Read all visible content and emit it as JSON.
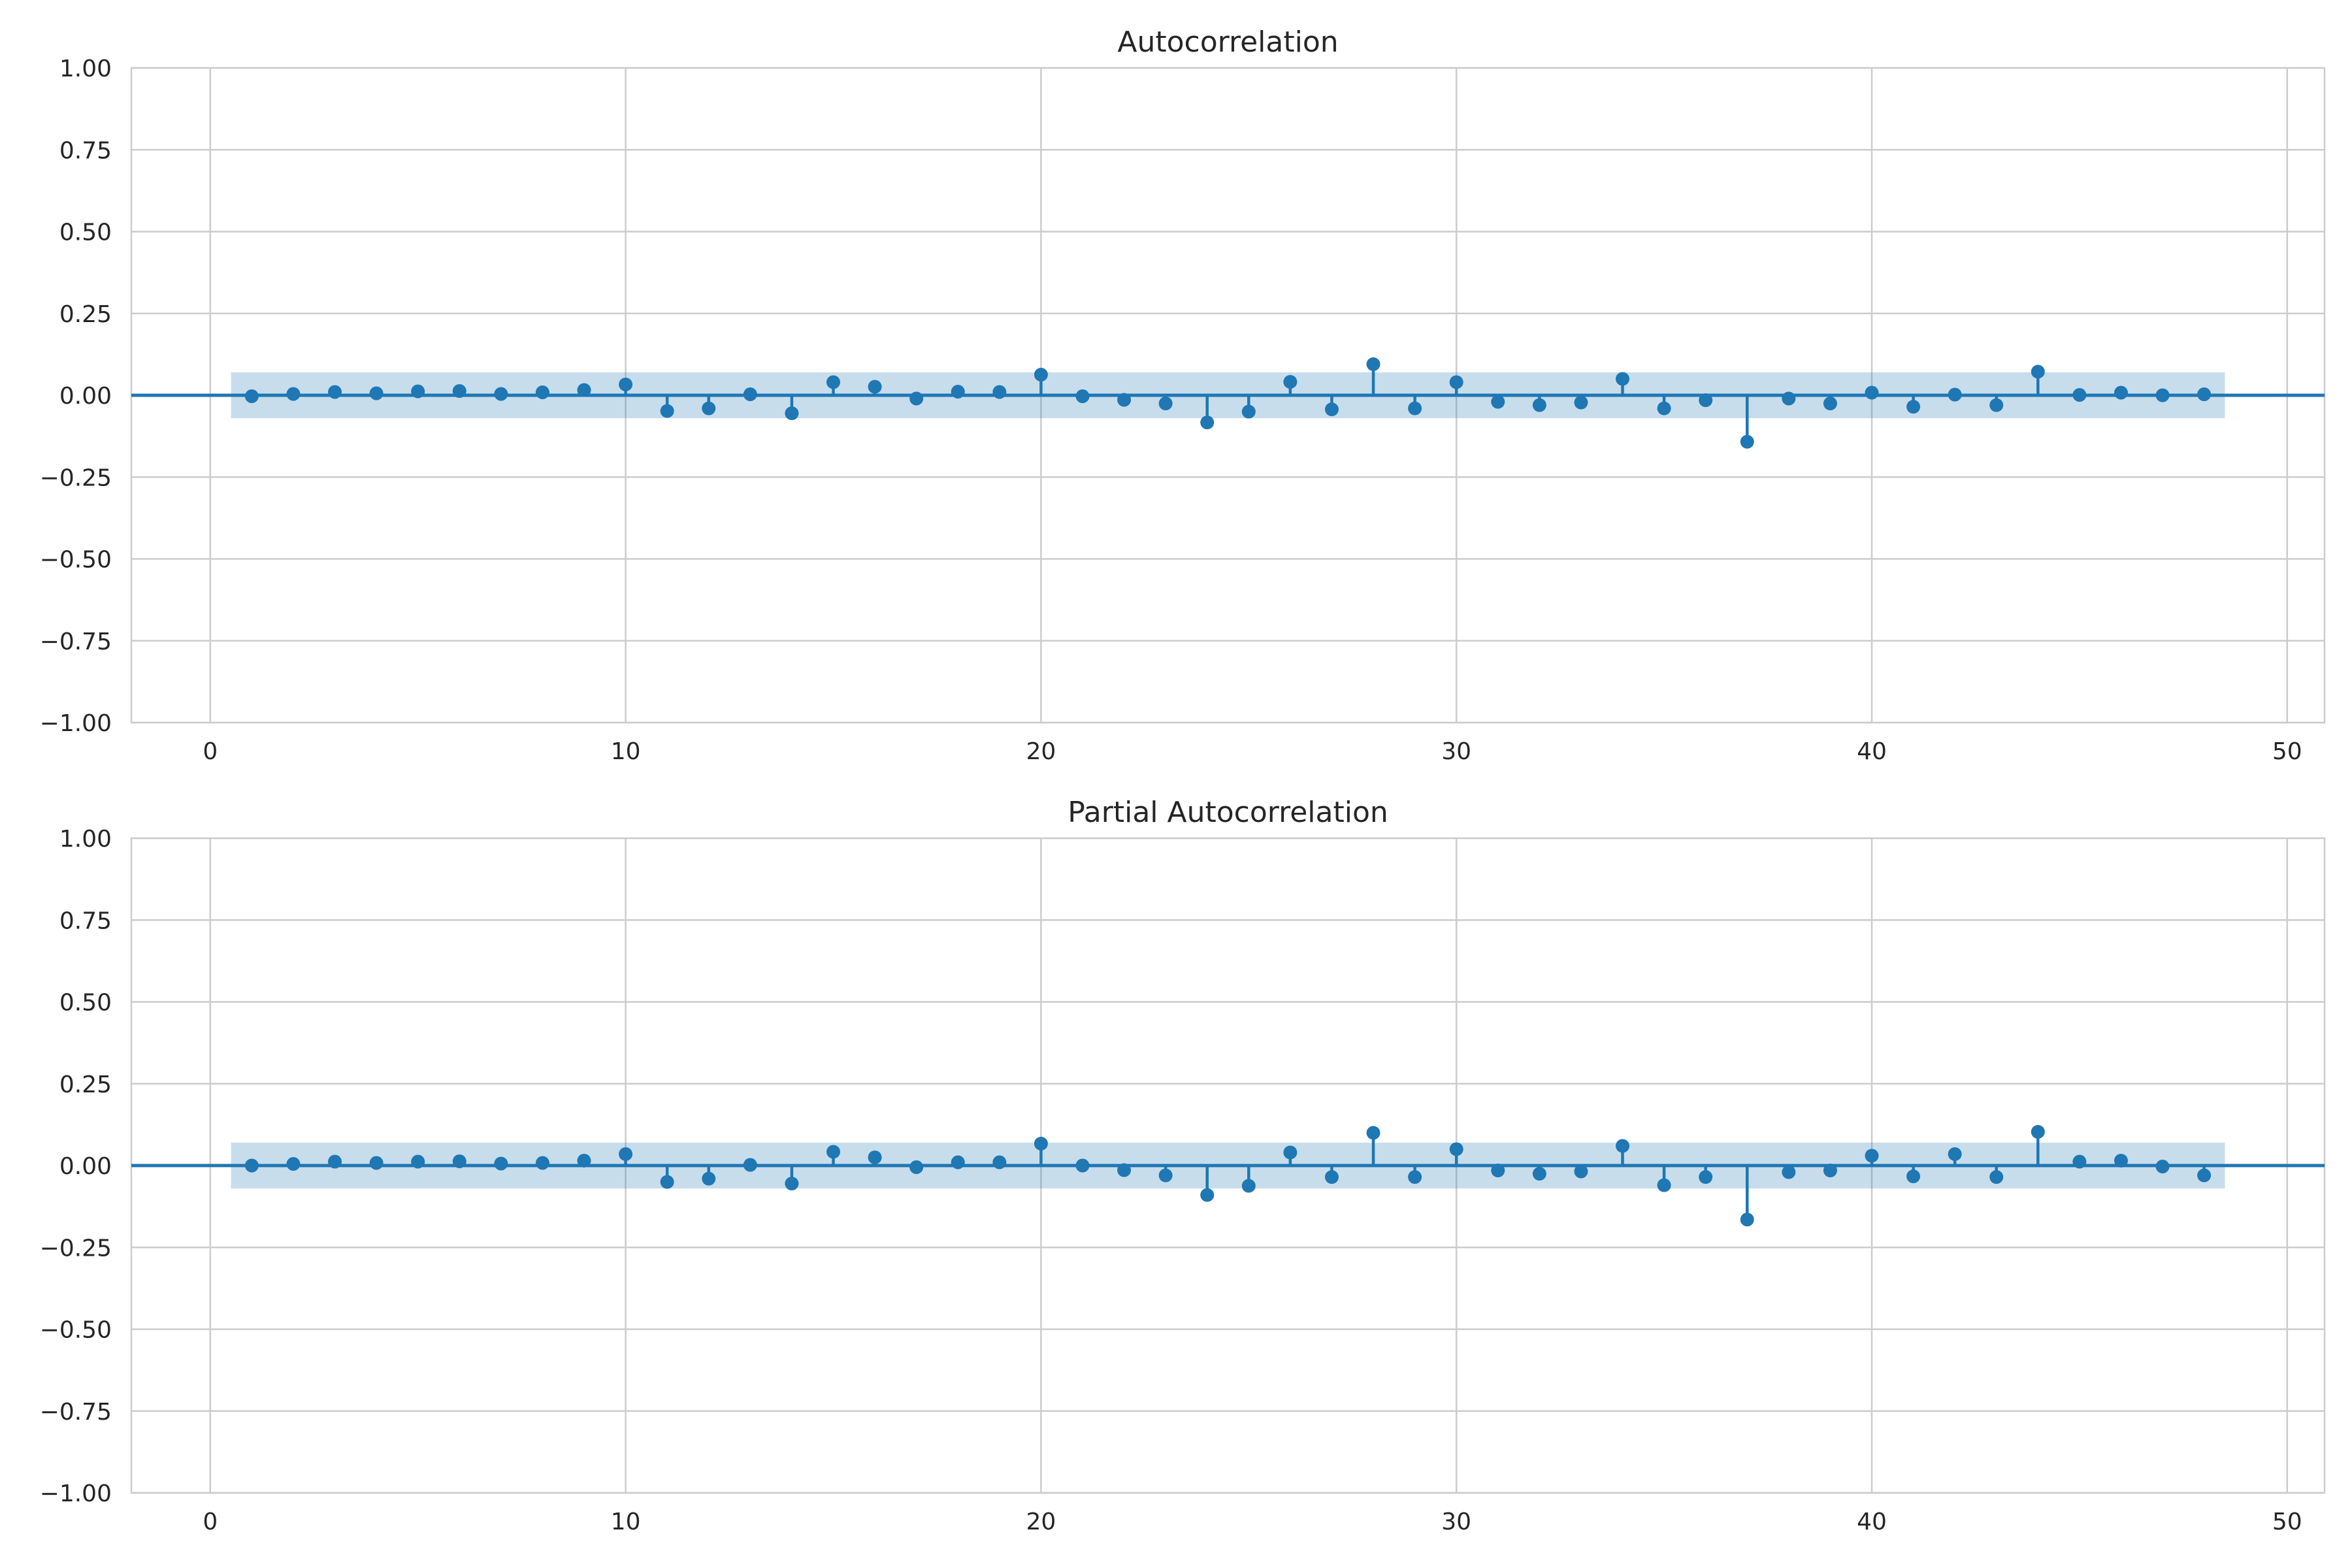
{
  "chart_data": [
    {
      "type": "stem",
      "title": "Autocorrelation",
      "xlabel": "",
      "ylabel": "",
      "xlim": [
        -1.9,
        50.9
      ],
      "ylim": [
        -1.0,
        1.0
      ],
      "xticks": [
        0,
        10,
        20,
        30,
        40,
        50
      ],
      "xtick_labels": [
        "0",
        "10",
        "20",
        "30",
        "40",
        "50"
      ],
      "yticks": [
        1.0,
        0.75,
        0.5,
        0.25,
        0.0,
        -0.25,
        -0.5,
        -0.75,
        -1.0
      ],
      "ytick_labels": [
        "1.00",
        "0.75",
        "0.50",
        "0.25",
        "0.00",
        "−0.25",
        "−0.50",
        "−0.75",
        "−1.00"
      ],
      "grid": true,
      "confidence_band": {
        "x_range": [
          0.5,
          48.5
        ],
        "lower": -0.07,
        "upper": 0.07,
        "color": "#1f77b4"
      },
      "series_color": "#1f77b4",
      "lags": [
        1,
        2,
        3,
        4,
        5,
        6,
        7,
        8,
        9,
        10,
        11,
        12,
        13,
        14,
        15,
        16,
        17,
        18,
        19,
        20,
        21,
        22,
        23,
        24,
        25,
        26,
        27,
        28,
        29,
        30,
        31,
        32,
        33,
        34,
        35,
        36,
        37,
        38,
        39,
        40,
        41,
        42,
        43,
        44,
        45,
        46,
        47,
        48
      ],
      "values": [
        -0.003,
        0.004,
        0.01,
        0.006,
        0.012,
        0.013,
        0.004,
        0.009,
        0.016,
        0.033,
        -0.048,
        -0.04,
        0.003,
        -0.055,
        0.04,
        0.026,
        -0.01,
        0.011,
        0.01,
        0.063,
        -0.003,
        -0.014,
        -0.025,
        -0.083,
        -0.05,
        0.041,
        -0.043,
        0.095,
        -0.04,
        0.04,
        -0.02,
        -0.03,
        -0.022,
        0.05,
        -0.04,
        -0.015,
        -0.142,
        -0.01,
        -0.025,
        0.008,
        -0.035,
        0.002,
        -0.03,
        0.072,
        0.001,
        0.008,
        0.0,
        0.003
      ]
    },
    {
      "type": "stem",
      "title": "Partial Autocorrelation",
      "xlabel": "",
      "ylabel": "",
      "xlim": [
        -1.9,
        50.9
      ],
      "ylim": [
        -1.0,
        1.0
      ],
      "xticks": [
        0,
        10,
        20,
        30,
        40,
        50
      ],
      "xtick_labels": [
        "0",
        "10",
        "20",
        "30",
        "40",
        "50"
      ],
      "yticks": [
        1.0,
        0.75,
        0.5,
        0.25,
        0.0,
        -0.25,
        -0.5,
        -0.75,
        -1.0
      ],
      "ytick_labels": [
        "1.00",
        "0.75",
        "0.50",
        "0.25",
        "0.00",
        "−0.25",
        "−0.50",
        "−0.75",
        "−1.00"
      ],
      "grid": true,
      "confidence_band": {
        "x_range": [
          0.5,
          48.5
        ],
        "lower": -0.07,
        "upper": 0.07,
        "color": "#1f77b4"
      },
      "series_color": "#1f77b4",
      "lags": [
        1,
        2,
        3,
        4,
        5,
        6,
        7,
        8,
        9,
        10,
        11,
        12,
        13,
        14,
        15,
        16,
        17,
        18,
        19,
        20,
        21,
        22,
        23,
        24,
        25,
        26,
        27,
        28,
        29,
        30,
        31,
        32,
        33,
        34,
        35,
        36,
        37,
        38,
        39,
        40,
        41,
        42,
        43,
        44,
        45,
        46,
        47,
        48
      ],
      "values": [
        0.0,
        0.005,
        0.012,
        0.008,
        0.012,
        0.013,
        0.006,
        0.008,
        0.015,
        0.035,
        -0.05,
        -0.04,
        0.002,
        -0.055,
        0.042,
        0.025,
        -0.005,
        0.01,
        0.01,
        0.067,
        0.0,
        -0.014,
        -0.03,
        -0.09,
        -0.062,
        0.04,
        -0.035,
        0.1,
        -0.035,
        0.05,
        -0.015,
        -0.025,
        -0.018,
        0.06,
        -0.06,
        -0.035,
        -0.165,
        -0.02,
        -0.015,
        0.03,
        -0.033,
        0.035,
        -0.035,
        0.103,
        0.012,
        0.015,
        -0.003,
        -0.03
      ]
    }
  ]
}
